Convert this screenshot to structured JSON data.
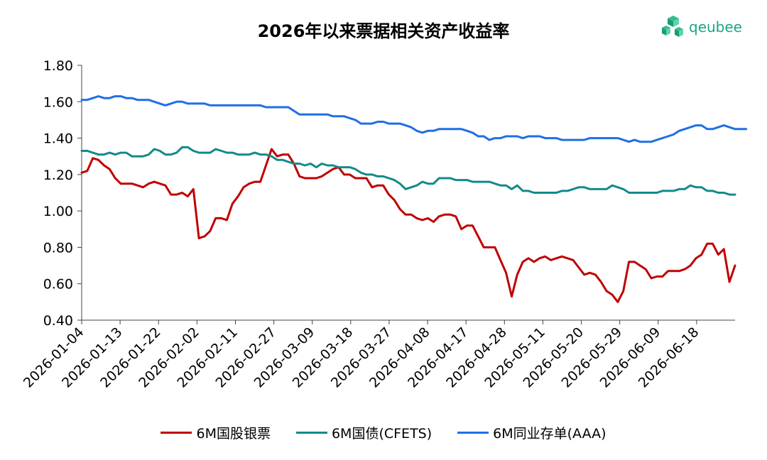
{
  "title": "2026年以来票据相关资产收益率",
  "logo": {
    "text": "qeubee",
    "icon": "cube-logo-icon",
    "color": "#1aa58a"
  },
  "chart_data": {
    "type": "line",
    "title": "2026年以来票据相关资产收益率",
    "xlabel": "",
    "ylabel": "",
    "ylim": [
      0.4,
      1.8
    ],
    "yticks": [
      "0.40",
      "0.60",
      "0.80",
      "1.00",
      "1.20",
      "1.40",
      "1.60",
      "1.80"
    ],
    "xticks": [
      "2026-01-04",
      "2026-01-13",
      "2026-01-22",
      "2026-02-02",
      "2026-02-11",
      "2026-02-27",
      "2026-03-09",
      "2026-03-18",
      "2026-03-27",
      "2026-04-08",
      "2026-04-17",
      "2026-04-28",
      "2026-05-11",
      "2026-05-20",
      "2026-05-29",
      "2026-06-09",
      "2026-06-18"
    ],
    "grid": false,
    "legend": "bottom",
    "series": [
      {
        "name": "6M国股银票",
        "color": "#c00000",
        "values": [
          1.21,
          1.22,
          1.29,
          1.28,
          1.25,
          1.23,
          1.18,
          1.15,
          1.15,
          1.15,
          1.14,
          1.13,
          1.15,
          1.16,
          1.15,
          1.14,
          1.09,
          1.09,
          1.1,
          1.08,
          1.12,
          0.85,
          0.86,
          0.89,
          0.96,
          0.96,
          0.95,
          1.04,
          1.08,
          1.13,
          1.15,
          1.16,
          1.16,
          1.25,
          1.34,
          1.3,
          1.31,
          1.31,
          1.26,
          1.19,
          1.18,
          1.18,
          1.18,
          1.19,
          1.21,
          1.23,
          1.24,
          1.2,
          1.2,
          1.18,
          1.18,
          1.18,
          1.13,
          1.14,
          1.14,
          1.09,
          1.06,
          1.01,
          0.98,
          0.98,
          0.96,
          0.95,
          0.96,
          0.94,
          0.97,
          0.98,
          0.98,
          0.97,
          0.9,
          0.92,
          0.92,
          0.86,
          0.8,
          0.8,
          0.8,
          0.73,
          0.66,
          0.53,
          0.65,
          0.72,
          0.74,
          0.72,
          0.74,
          0.75,
          0.73,
          0.74,
          0.75,
          0.74,
          0.73,
          0.69,
          0.65,
          0.66,
          0.65,
          0.61,
          0.56,
          0.54,
          0.5,
          0.56,
          0.72,
          0.72,
          0.7,
          0.68,
          0.63,
          0.64,
          0.64,
          0.67,
          0.67,
          0.67,
          0.68,
          0.7,
          0.74,
          0.76,
          0.82,
          0.82,
          0.76,
          0.79,
          0.61,
          0.7
        ]
      },
      {
        "name": "6M国债(CFETS)",
        "color": "#138a8a",
        "values": [
          1.33,
          1.33,
          1.32,
          1.31,
          1.31,
          1.32,
          1.31,
          1.32,
          1.32,
          1.3,
          1.3,
          1.3,
          1.31,
          1.34,
          1.33,
          1.31,
          1.31,
          1.32,
          1.35,
          1.35,
          1.33,
          1.32,
          1.32,
          1.32,
          1.34,
          1.33,
          1.32,
          1.32,
          1.31,
          1.31,
          1.31,
          1.32,
          1.31,
          1.31,
          1.3,
          1.28,
          1.28,
          1.27,
          1.26,
          1.26,
          1.25,
          1.26,
          1.24,
          1.26,
          1.25,
          1.25,
          1.24,
          1.24,
          1.24,
          1.23,
          1.21,
          1.2,
          1.2,
          1.19,
          1.19,
          1.18,
          1.17,
          1.15,
          1.12,
          1.13,
          1.14,
          1.16,
          1.15,
          1.15,
          1.18,
          1.18,
          1.18,
          1.17,
          1.17,
          1.17,
          1.16,
          1.16,
          1.16,
          1.16,
          1.15,
          1.14,
          1.14,
          1.12,
          1.14,
          1.11,
          1.11,
          1.1,
          1.1,
          1.1,
          1.1,
          1.1,
          1.11,
          1.11,
          1.12,
          1.13,
          1.13,
          1.12,
          1.12,
          1.12,
          1.12,
          1.14,
          1.13,
          1.12,
          1.1,
          1.1,
          1.1,
          1.1,
          1.1,
          1.1,
          1.11,
          1.11,
          1.11,
          1.12,
          1.12,
          1.14,
          1.13,
          1.13,
          1.11,
          1.11,
          1.1,
          1.1,
          1.09,
          1.09
        ]
      },
      {
        "name": "6M同业存单(AAA)",
        "color": "#1f6fe5",
        "values": [
          1.61,
          1.61,
          1.62,
          1.63,
          1.62,
          1.62,
          1.63,
          1.63,
          1.62,
          1.62,
          1.61,
          1.61,
          1.61,
          1.6,
          1.59,
          1.58,
          1.59,
          1.6,
          1.6,
          1.59,
          1.59,
          1.59,
          1.59,
          1.58,
          1.58,
          1.58,
          1.58,
          1.58,
          1.58,
          1.58,
          1.58,
          1.58,
          1.58,
          1.57,
          1.57,
          1.57,
          1.57,
          1.57,
          1.55,
          1.53,
          1.53,
          1.53,
          1.53,
          1.53,
          1.53,
          1.52,
          1.52,
          1.52,
          1.51,
          1.5,
          1.48,
          1.48,
          1.48,
          1.49,
          1.49,
          1.48,
          1.48,
          1.48,
          1.47,
          1.46,
          1.44,
          1.43,
          1.44,
          1.44,
          1.45,
          1.45,
          1.45,
          1.45,
          1.45,
          1.44,
          1.43,
          1.41,
          1.41,
          1.39,
          1.4,
          1.4,
          1.41,
          1.41,
          1.41,
          1.4,
          1.41,
          1.41,
          1.41,
          1.4,
          1.4,
          1.4,
          1.39,
          1.39,
          1.39,
          1.39,
          1.39,
          1.4,
          1.4,
          1.4,
          1.4,
          1.4,
          1.4,
          1.39,
          1.38,
          1.39,
          1.38,
          1.38,
          1.38,
          1.39,
          1.4,
          1.41,
          1.42,
          1.44,
          1.45,
          1.46,
          1.47,
          1.47,
          1.45,
          1.45,
          1.46,
          1.47,
          1.46,
          1.45,
          1.45,
          1.45
        ]
      }
    ]
  }
}
